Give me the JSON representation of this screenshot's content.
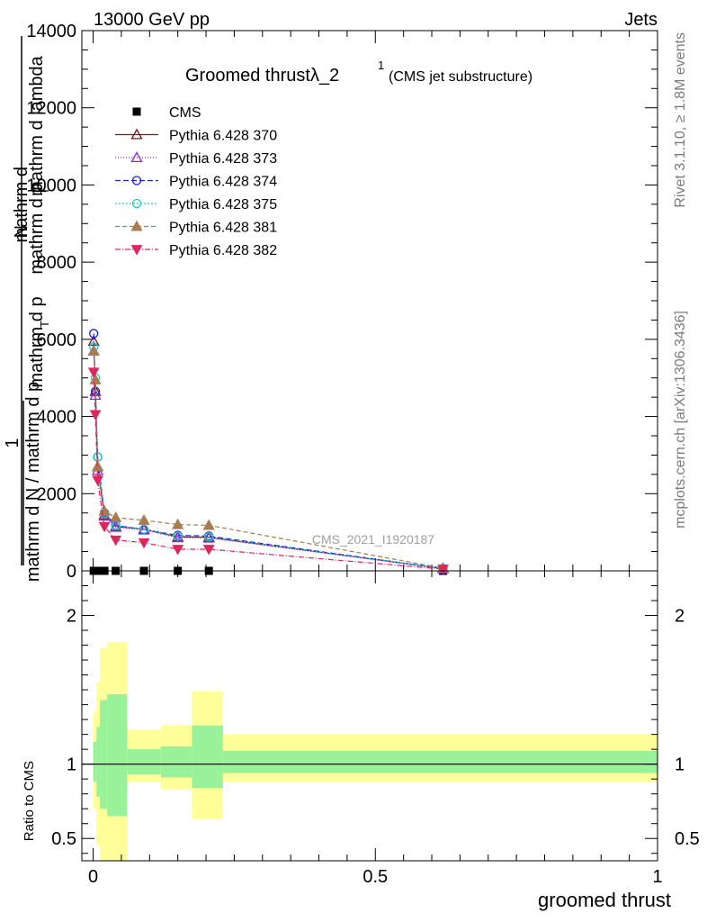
{
  "header": {
    "left": "13000 GeV pp",
    "right": "Jets",
    "side_top": "Rivet 3.1.10, ≥ 1.8M events",
    "side_bottom": "mcplots.cern.ch [arXiv:1306.3436]",
    "watermark": "CMS_2021_I1920187"
  },
  "chart_data": [
    {
      "type": "line",
      "title_main": "Groomed thrustλ_2",
      "title_sup": "1",
      "title_sub": "(CMS jet substructure)",
      "xlabel": "",
      "ylabel_numerator": "mathrm d^{2}N",
      "ylabel_denominator": "mathrm d p_{T} mathrm d lambda",
      "ylabel_prefix": "1",
      "ylabel_under": "mathrm d N / mathrm d p_{T}",
      "ylabel_lines": [
        "mathrm d",
        "N",
        "mathrm d p",
        "T",
        "mathrm d lambda",
        "mathrm d p",
        "T",
        "mathrm d N / mathrm d p",
        "1"
      ],
      "xlim": [
        -0.02,
        1.0
      ],
      "ylim": [
        0,
        14000
      ],
      "yticks": [
        0,
        2000,
        4000,
        6000,
        8000,
        10000,
        12000,
        14000
      ],
      "ytick_labels": [
        "0",
        "2000",
        "4000",
        "6000",
        "8000",
        "10000",
        "12000",
        "14000"
      ],
      "legend_position": "top-left",
      "x": [
        0.001,
        0.004,
        0.008,
        0.02,
        0.04,
        0.09,
        0.15,
        0.205,
        0.62
      ],
      "series": [
        {
          "name": "CMS",
          "color": "#000000",
          "marker": "square",
          "values": [
            0,
            0,
            0,
            0,
            0,
            0,
            0,
            0,
            0
          ]
        },
        {
          "name": "Pythia 6.428 370",
          "color": "#7f1020",
          "marker": "triangle-open",
          "dash": "",
          "values": [
            5950,
            4650,
            2700,
            1450,
            1150,
            1080,
            880,
            870,
            60
          ]
        },
        {
          "name": "Pythia 6.428 373",
          "color": "#8a2be2",
          "marker": "triangle-open",
          "dash": "1,2",
          "values": [
            5700,
            4550,
            2600,
            1420,
            1130,
            1060,
            860,
            850,
            55
          ]
        },
        {
          "name": "Pythia 6.428 374",
          "color": "#1f1fd6",
          "marker": "circle-open",
          "dash": "6,3",
          "values": [
            6150,
            4650,
            2950,
            1500,
            1180,
            1070,
            920,
            900,
            60
          ]
        },
        {
          "name": "Pythia 6.428 375",
          "color": "#17cfc2",
          "marker": "circle-open",
          "dash": "2,2",
          "values": [
            5800,
            5000,
            2950,
            1480,
            1170,
            1080,
            900,
            880,
            60
          ]
        },
        {
          "name": "Pythia 6.428 381",
          "color": "#a87c4f",
          "marker": "triangle-filled",
          "dash": "5,3",
          "values": [
            5700,
            4950,
            2700,
            1550,
            1380,
            1310,
            1200,
            1180,
            70
          ]
        },
        {
          "name": "Pythia 6.428 382",
          "color": "#e0245e",
          "marker": "triangle-down-filled",
          "dash": "6,2,1,2",
          "values": [
            5150,
            4050,
            2350,
            1150,
            800,
            730,
            560,
            560,
            45
          ]
        }
      ]
    },
    {
      "type": "band",
      "ylabel": "Ratio to CMS",
      "xlabel": "groomed thrust",
      "xlim": [
        -0.02,
        1.0
      ],
      "ylim": [
        0.35,
        2.3
      ],
      "yticks": [
        0.5,
        1,
        2
      ],
      "ytick_labels": [
        "0.5",
        "1",
        "2"
      ],
      "xticks": [
        0,
        0.5,
        1
      ],
      "xtick_labels": [
        "0",
        "0.5",
        "1"
      ],
      "reference": 1,
      "bins": [
        {
          "x0": 0.0,
          "x1": 0.006,
          "inner": [
            0.88,
            1.15
          ],
          "outer": [
            0.7,
            1.35
          ]
        },
        {
          "x0": 0.006,
          "x1": 0.012,
          "inner": [
            0.78,
            1.25
          ],
          "outer": [
            0.45,
            1.55
          ]
        },
        {
          "x0": 0.012,
          "x1": 0.025,
          "inner": [
            0.7,
            1.43
          ],
          "outer": [
            0.35,
            1.78
          ]
        },
        {
          "x0": 0.025,
          "x1": 0.06,
          "inner": [
            0.65,
            1.47
          ],
          "outer": [
            0.35,
            1.82
          ]
        },
        {
          "x0": 0.06,
          "x1": 0.12,
          "inner": [
            0.93,
            1.1
          ],
          "outer": [
            0.88,
            1.23
          ]
        },
        {
          "x0": 0.12,
          "x1": 0.175,
          "inner": [
            0.91,
            1.12
          ],
          "outer": [
            0.83,
            1.26
          ]
        },
        {
          "x0": 0.175,
          "x1": 0.23,
          "inner": [
            0.84,
            1.26
          ],
          "outer": [
            0.63,
            1.49
          ]
        },
        {
          "x0": 0.23,
          "x1": 1.0,
          "inner": [
            0.94,
            1.09
          ],
          "outer": [
            0.88,
            1.2
          ]
        }
      ],
      "inner_color": "#99f299",
      "outer_color": "#ffff99"
    }
  ]
}
